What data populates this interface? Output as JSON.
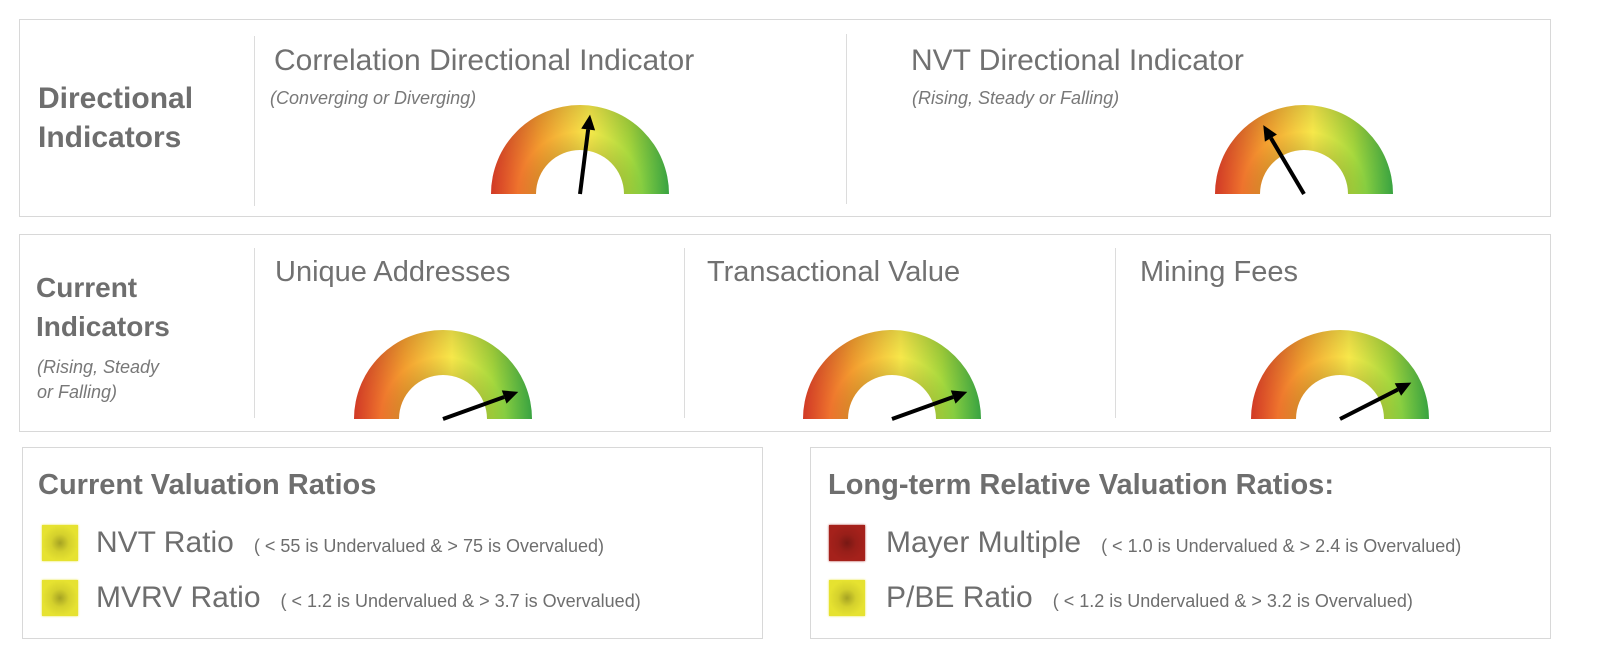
{
  "directional": {
    "section_title_line1": "Directional",
    "section_title_line2": "Indicators",
    "gauges": [
      {
        "title": "Correlation Directional Indicator",
        "subtitle": "(Converging or Diverging)",
        "needle_level": 0.54
      },
      {
        "title": "NVT Directional Indicator",
        "subtitle": "(Rising, Steady or Falling)",
        "needle_level": 0.33
      }
    ]
  },
  "current": {
    "section_title_line1": "Current",
    "section_title_line2": "Indicators",
    "subtitle_line1": "(Rising, Steady",
    "subtitle_line2": "or Falling)",
    "gauges": [
      {
        "title": "Unique Addresses",
        "needle_level": 0.89
      },
      {
        "title": "Transactional Value",
        "needle_level": 0.89
      },
      {
        "title": "Mining Fees",
        "needle_level": 0.85
      }
    ]
  },
  "valuation": {
    "title": "Current Valuation Ratios",
    "items": [
      {
        "name": "NVT Ratio",
        "desc": "( < 55 is Undervalued  &  > 75 is Overvalued)",
        "status_color": "#e6e230"
      },
      {
        "name": "MVRV Ratio",
        "desc": "( < 1.2 is Undervalued  &  > 3.7 is Overvalued)",
        "status_color": "#e6e230"
      }
    ]
  },
  "longterm": {
    "title": "Long-term Relative Valuation Ratios:",
    "items": [
      {
        "name": "Mayer Multiple",
        "desc": "( < 1.0 is Undervalued  &  > 2.4 is Overvalued)",
        "status_color": "#a5211b"
      },
      {
        "name": "P/BE Ratio",
        "desc": "( < 1.2 is Undervalued  &  > 3.2 is Overvalued)",
        "status_color": "#e6e230"
      }
    ]
  },
  "colors": {
    "gauge_red": "#e8402a",
    "gauge_orange": "#f39d2f",
    "gauge_yellow": "#f7e84a",
    "gauge_green": "#3fb548"
  }
}
